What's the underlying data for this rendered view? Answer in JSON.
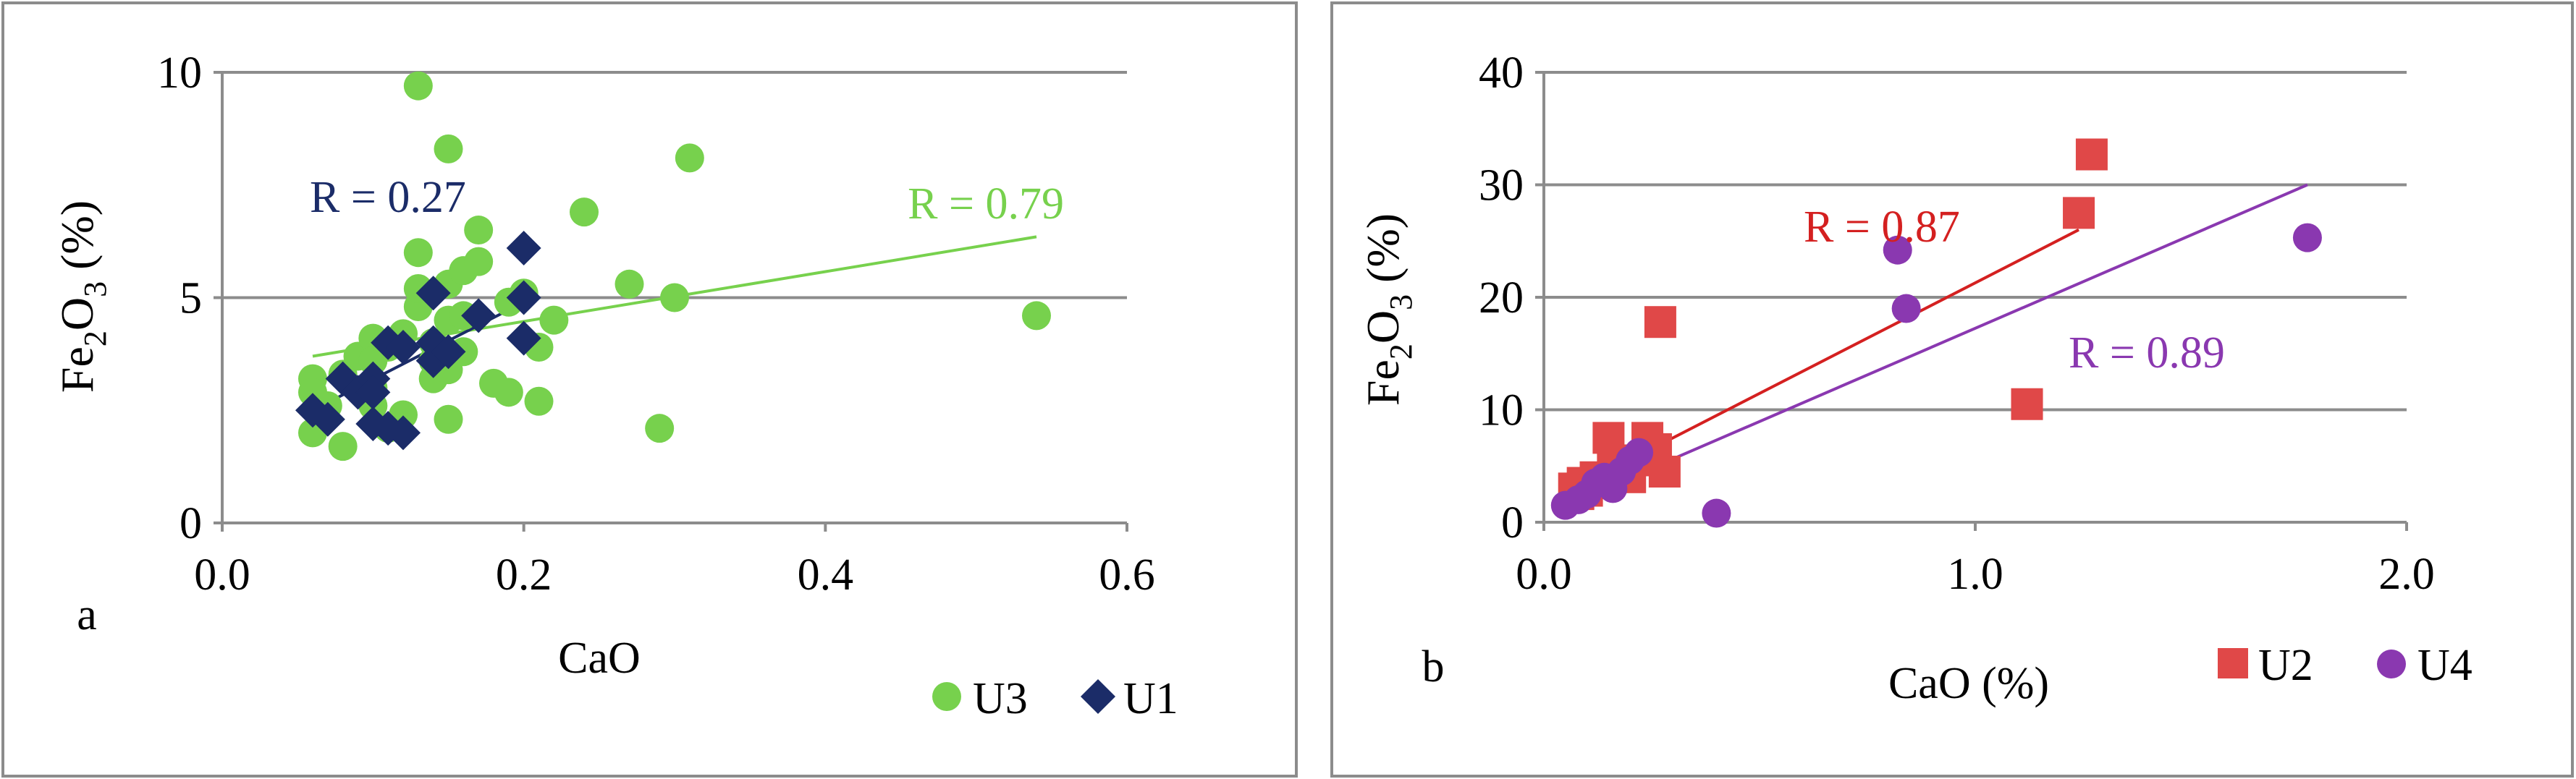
{
  "chart_data": [
    {
      "panel_label": "a",
      "type": "scatter",
      "title": "",
      "xlabel": "CaO",
      "ylabel_parts": {
        "base": "Fe",
        "sub1": "2",
        "mid": "O",
        "sub2": "3",
        "unit": " (%)"
      },
      "xlim": [
        0,
        0.6
      ],
      "ylim": [
        0,
        10
      ],
      "x_ticks": [
        0,
        0.2,
        0.4,
        0.6
      ],
      "x_tick_labels": [
        "0.0",
        "0.2",
        "0.4",
        "0.6"
      ],
      "y_ticks": [
        0,
        5,
        10
      ],
      "y_tick_labels": [
        "0",
        "5",
        "10"
      ],
      "grid": "horizontal",
      "legend": [
        "U3",
        "U1"
      ],
      "legend_position": "bottom-right",
      "series": [
        {
          "name": "U3",
          "marker": "circle",
          "color": "#77d14d",
          "points": [
            [
              0.06,
              3.2
            ],
            [
              0.06,
              2.9
            ],
            [
              0.06,
              2.0
            ],
            [
              0.07,
              2.6
            ],
            [
              0.08,
              1.7
            ],
            [
              0.08,
              3.3
            ],
            [
              0.09,
              3.7
            ],
            [
              0.1,
              4.1
            ],
            [
              0.1,
              3.6
            ],
            [
              0.1,
              3.0
            ],
            [
              0.1,
              2.6
            ],
            [
              0.11,
              3.9
            ],
            [
              0.11,
              2.1
            ],
            [
              0.12,
              4.2
            ],
            [
              0.12,
              2.4
            ],
            [
              0.13,
              9.7
            ],
            [
              0.13,
              6.0
            ],
            [
              0.13,
              4.8
            ],
            [
              0.13,
              5.2
            ],
            [
              0.14,
              4.0
            ],
            [
              0.14,
              3.6
            ],
            [
              0.14,
              3.2
            ],
            [
              0.15,
              8.3
            ],
            [
              0.15,
              5.3
            ],
            [
              0.15,
              4.5
            ],
            [
              0.15,
              3.4
            ],
            [
              0.15,
              2.3
            ],
            [
              0.16,
              5.6
            ],
            [
              0.16,
              4.6
            ],
            [
              0.16,
              3.8
            ],
            [
              0.17,
              6.5
            ],
            [
              0.17,
              5.8
            ],
            [
              0.18,
              3.1
            ],
            [
              0.19,
              4.9
            ],
            [
              0.19,
              2.9
            ],
            [
              0.2,
              5.1
            ],
            [
              0.21,
              3.9
            ],
            [
              0.21,
              2.7
            ],
            [
              0.22,
              4.5
            ],
            [
              0.24,
              6.9
            ],
            [
              0.27,
              5.3
            ],
            [
              0.29,
              2.1
            ],
            [
              0.3,
              5.0
            ],
            [
              0.31,
              8.1
            ],
            [
              0.54,
              4.6
            ]
          ],
          "trendline": {
            "x": [
              0.06,
              0.54
            ],
            "y": [
              3.7,
              6.35
            ],
            "label": "R = 0.79"
          }
        },
        {
          "name": "U1",
          "marker": "diamond",
          "color": "#1b2c68",
          "points": [
            [
              0.06,
              2.5
            ],
            [
              0.07,
              2.3
            ],
            [
              0.08,
              3.2
            ],
            [
              0.09,
              2.9
            ],
            [
              0.1,
              3.2
            ],
            [
              0.1,
              2.9
            ],
            [
              0.1,
              2.2
            ],
            [
              0.11,
              4.0
            ],
            [
              0.11,
              2.1
            ],
            [
              0.12,
              3.9
            ],
            [
              0.12,
              2.0
            ],
            [
              0.14,
              5.1
            ],
            [
              0.14,
              4.0
            ],
            [
              0.14,
              3.6
            ],
            [
              0.15,
              3.8
            ],
            [
              0.17,
              4.6
            ],
            [
              0.2,
              6.1
            ],
            [
              0.2,
              5.0
            ],
            [
              0.2,
              4.1
            ]
          ],
          "trendline": {
            "x": [
              0.06,
              0.2
            ],
            "y": [
              2.5,
              4.9
            ],
            "label": "R = 0.27"
          }
        }
      ]
    },
    {
      "panel_label": "b",
      "type": "scatter",
      "title": "",
      "xlabel": "CaO (%)",
      "ylabel_parts": {
        "base": "Fe",
        "sub1": "2",
        "mid": "O",
        "sub2": "3",
        "unit": " (%)"
      },
      "xlim": [
        0,
        2
      ],
      "ylim": [
        0,
        40
      ],
      "x_ticks": [
        0,
        1,
        2
      ],
      "x_tick_labels": [
        "0.0",
        "1.0",
        "2.0"
      ],
      "y_ticks": [
        0,
        10,
        20,
        30,
        40
      ],
      "y_tick_labels": [
        "0",
        "10",
        "20",
        "30",
        "40"
      ],
      "grid": "horizontal",
      "legend": [
        "U2",
        "U4"
      ],
      "legend_position": "bottom-right",
      "series": [
        {
          "name": "U2",
          "marker": "square",
          "color": "#e04848",
          "points": [
            [
              0.07,
              3.0
            ],
            [
              0.08,
              2.5
            ],
            [
              0.09,
              3.5
            ],
            [
              0.1,
              2.8
            ],
            [
              0.12,
              4.0
            ],
            [
              0.14,
              3.5
            ],
            [
              0.15,
              7.5
            ],
            [
              0.16,
              5.0
            ],
            [
              0.18,
              4.5
            ],
            [
              0.2,
              4.0
            ],
            [
              0.22,
              5.5
            ],
            [
              0.24,
              7.5
            ],
            [
              0.26,
              6.5
            ],
            [
              0.27,
              17.8
            ],
            [
              0.28,
              4.5
            ],
            [
              1.12,
              10.5
            ],
            [
              1.24,
              27.5
            ],
            [
              1.27,
              32.7
            ]
          ],
          "trendline": {
            "x": [
              0.06,
              1.24
            ],
            "y": [
              2.8,
              26.0
            ],
            "label": "R = 0.87"
          }
        },
        {
          "name": "U4",
          "marker": "circle",
          "color": "#8a38b0",
          "points": [
            [
              0.05,
              1.5
            ],
            [
              0.08,
              2.0
            ],
            [
              0.1,
              2.5
            ],
            [
              0.12,
              3.5
            ],
            [
              0.14,
              4.0
            ],
            [
              0.16,
              3.0
            ],
            [
              0.18,
              4.5
            ],
            [
              0.2,
              5.5
            ],
            [
              0.22,
              6.2
            ],
            [
              0.4,
              0.8
            ],
            [
              0.82,
              24.2
            ],
            [
              0.84,
              19.0
            ],
            [
              1.77,
              25.3
            ]
          ],
          "trendline": {
            "x": [
              0.05,
              1.77
            ],
            "y": [
              1.5,
              30.0
            ],
            "label": "R = 0.89"
          }
        }
      ]
    }
  ]
}
